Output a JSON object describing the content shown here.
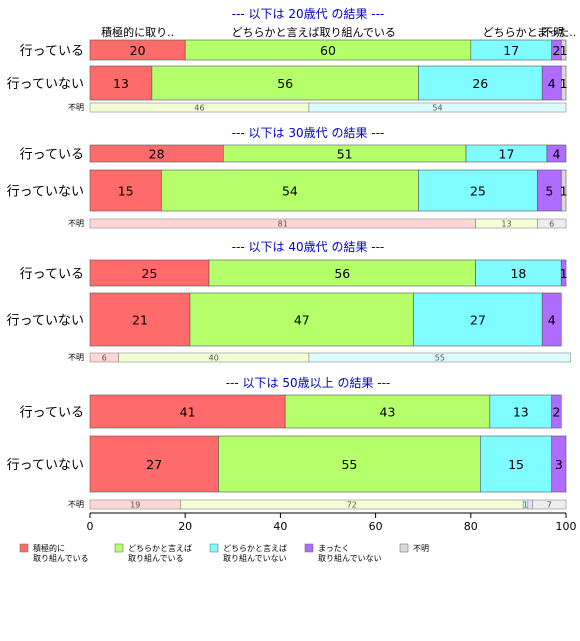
{
  "colors": {
    "sekkyoku": "#ff6b6b",
    "dochira_yes": "#b5ff6b",
    "dochira_no": "#7ffcff",
    "mattaku": "#b06bff",
    "fumei": "#d9d9d9",
    "title": "#0000cc",
    "unknown_pale": [
      "#ffd6d6",
      "#f4ffd6",
      "#dcfdff",
      "#eedcff",
      "#eeeeee"
    ]
  },
  "chart_data": {
    "type": "bar",
    "orientation": "horizontal-stacked-100",
    "xlim": [
      0,
      100
    ],
    "xticks": [
      "0",
      "20",
      "40",
      "60",
      "80",
      "100"
    ],
    "legend": {
      "placement": "bottom-left",
      "entries": [
        {
          "key": "sekkyoku",
          "line1": "積極的に",
          "line2": "取り組んでいる"
        },
        {
          "key": "dochira_yes",
          "line1": "どちらかと言えば",
          "line2": "取り組んでいる"
        },
        {
          "key": "dochira_no",
          "line1": "どちらかと言えば",
          "line2": "取り組んでいない"
        },
        {
          "key": "mattaku",
          "line1": "まったく",
          "line2": "取り組んでいない"
        },
        {
          "key": "fumei",
          "line1": "不明",
          "line2": ""
        }
      ]
    },
    "top_header_labels": [
      "積極的に取り..",
      "どちらかと言えば取り組んでいる",
      "どちらかと..",
      "まった..",
      "不明"
    ],
    "panels": [
      {
        "title": "--- 以下は 20歳代 の結果 ---",
        "rows": [
          {
            "label": "行っている",
            "values": [
              20,
              60,
              17,
              2,
              1
            ],
            "labels": [
              "20",
              "60",
              "17",
              "2",
              "1"
            ]
          },
          {
            "label": "行っていない",
            "values": [
              13,
              56,
              26,
              4,
              1
            ],
            "labels": [
              "13",
              "56",
              "26",
              "4",
              "1"
            ]
          }
        ],
        "unknown": {
          "label": "不明",
          "values": [
            0,
            46,
            54,
            0,
            0
          ],
          "labels": [
            "",
            "46",
            "54",
            "",
            ""
          ]
        }
      },
      {
        "title": "--- 以下は 30歳代 の結果 ---",
        "rows": [
          {
            "label": "行っている",
            "values": [
              28,
              51,
              17,
              4,
              0
            ],
            "labels": [
              "28",
              "51",
              "17",
              "4",
              ""
            ]
          },
          {
            "label": "行っていない",
            "values": [
              15,
              54,
              25,
              5,
              1
            ],
            "labels": [
              "15",
              "54",
              "25",
              "5",
              "1"
            ]
          }
        ],
        "unknown": {
          "label": "不明",
          "values": [
            81,
            13,
            0,
            0,
            6
          ],
          "labels": [
            "81",
            "13",
            "",
            "",
            "6"
          ]
        }
      },
      {
        "title": "--- 以下は 40歳代 の結果 ---",
        "rows": [
          {
            "label": "行っている",
            "values": [
              25,
              56,
              18,
              1,
              0
            ],
            "labels": [
              "25",
              "56",
              "18",
              "1",
              ""
            ]
          },
          {
            "label": "行っていない",
            "values": [
              21,
              47,
              27,
              4,
              0
            ],
            "labels": [
              "21",
              "47",
              "27",
              "4",
              ""
            ]
          }
        ],
        "unknown": {
          "label": "不明",
          "values": [
            6,
            40,
            55,
            0,
            0
          ],
          "labels": [
            "6",
            "40",
            "55",
            "",
            ""
          ]
        }
      },
      {
        "title": "--- 以下は 50歳以上 の結果 ---",
        "rows": [
          {
            "label": "行っている",
            "values": [
              41,
              43,
              13,
              2,
              0
            ],
            "labels": [
              "41",
              "43",
              "13",
              "2",
              ""
            ]
          },
          {
            "label": "行っていない",
            "values": [
              27,
              55,
              15,
              3,
              0
            ],
            "labels": [
              "27",
              "55",
              "15",
              "3",
              ""
            ]
          }
        ],
        "unknown": {
          "label": "不明",
          "values": [
            19,
            72,
            1,
            1,
            7
          ],
          "labels": [
            "19",
            "72",
            "1",
            "",
            "7"
          ]
        }
      }
    ]
  }
}
